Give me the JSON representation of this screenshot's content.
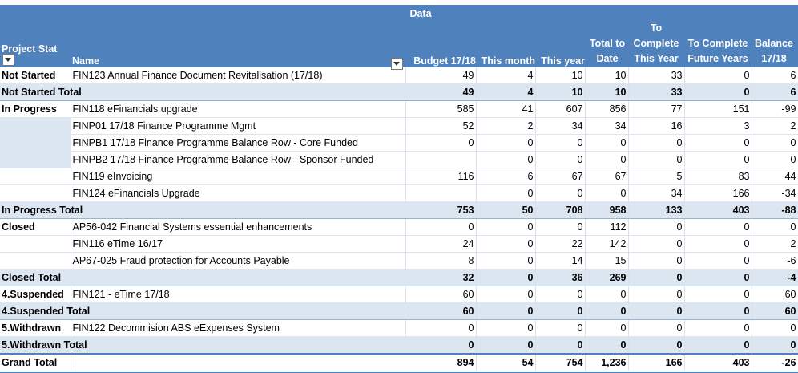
{
  "header": {
    "data_title": "Data",
    "project_status": "Project Stat",
    "name": "Name",
    "budget": "Budget 17/18",
    "this_month": "This month",
    "this_year": "This year",
    "total_to_date_1": "Total to",
    "total_to_date_2": "Date",
    "to_complete_1": "To",
    "to_complete_2": "Complete",
    "to_complete_3": "This Year",
    "future_1": "To Complete",
    "future_2": "Future Years",
    "balance_1": "Balance",
    "balance_2": "17/18"
  },
  "rows": [
    {
      "kind": "plain",
      "status": "Not Started",
      "name": "FIN123 Annual Finance Document Revitalisation (17/18)",
      "v": [
        "49",
        "4",
        "10",
        "10",
        "33",
        "0",
        "6"
      ]
    },
    {
      "kind": "total",
      "status": "Not Started Total",
      "name": "",
      "v": [
        "49",
        "4",
        "10",
        "10",
        "33",
        "0",
        "6"
      ]
    },
    {
      "kind": "plain",
      "status": "In Progress",
      "name": "FIN118 eFinancials upgrade",
      "v": [
        "585",
        "41",
        "607",
        "856",
        "77",
        "151",
        "-99"
      ]
    },
    {
      "kind": "plain",
      "status": "",
      "name": "FINP01 17/18 Finance Programme Mgmt",
      "v": [
        "52",
        "2",
        "34",
        "34",
        "16",
        "3",
        "2"
      ]
    },
    {
      "kind": "plain",
      "status": "",
      "name": "FINPB1 17/18 Finance Programme Balance Row - Core Funded",
      "v": [
        "0",
        "0",
        "0",
        "0",
        "0",
        "0",
        "0"
      ]
    },
    {
      "kind": "plain",
      "status": "",
      "name": "FINPB2 17/18 Finance Programme Balance Row - Sponsor Funded",
      "v": [
        "",
        "0",
        "0",
        "0",
        "0",
        "0",
        "0"
      ]
    },
    {
      "kind": "plain",
      "status": "",
      "name": "FIN119 eInvoicing",
      "v": [
        "116",
        "6",
        "67",
        "67",
        "5",
        "83",
        "44"
      ]
    },
    {
      "kind": "plain",
      "status": "",
      "name": "FIN124 eFinancials Upgrade",
      "v": [
        "",
        "0",
        "0",
        "0",
        "34",
        "166",
        "-34"
      ]
    },
    {
      "kind": "total",
      "status": "In Progress Total",
      "name": "",
      "v": [
        "753",
        "50",
        "708",
        "958",
        "133",
        "403",
        "-88"
      ]
    },
    {
      "kind": "plain",
      "status": "Closed",
      "name": "AP56-042 Financial Systems essential enhancements",
      "v": [
        "0",
        "0",
        "0",
        "112",
        "0",
        "0",
        "0"
      ]
    },
    {
      "kind": "plain",
      "status": "",
      "name": "FIN116 eTime 16/17",
      "v": [
        "24",
        "0",
        "22",
        "142",
        "0",
        "0",
        "2"
      ]
    },
    {
      "kind": "plain",
      "status": "",
      "name": "AP67-025 Fraud protection for Accounts Payable",
      "v": [
        "8",
        "0",
        "14",
        "15",
        "0",
        "0",
        "-6"
      ]
    },
    {
      "kind": "total",
      "status": "Closed Total",
      "name": "",
      "v": [
        "32",
        "0",
        "36",
        "269",
        "0",
        "0",
        "-4"
      ]
    },
    {
      "kind": "plain",
      "status": "4.Suspended",
      "name": "FIN121 - eTime 17/18",
      "v": [
        "60",
        "0",
        "0",
        "0",
        "0",
        "0",
        "60"
      ]
    },
    {
      "kind": "total",
      "status": "4.Suspended Total",
      "name": "",
      "v": [
        "60",
        "0",
        "0",
        "0",
        "0",
        "0",
        "60"
      ]
    },
    {
      "kind": "plain",
      "status": "5.Withdrawn",
      "name": "FIN122 Decommision ABS eExpenses System",
      "v": [
        "0",
        "0",
        "0",
        "0",
        "0",
        "0",
        "0"
      ]
    },
    {
      "kind": "total",
      "status": "5.Withdrawn Total",
      "name": "",
      "v": [
        "0",
        "0",
        "0",
        "0",
        "0",
        "0",
        "0"
      ]
    },
    {
      "kind": "grand",
      "status": "Grand Total",
      "name": "",
      "v": [
        "894",
        "54",
        "754",
        "1,236",
        "166",
        "403",
        "-26"
      ]
    }
  ]
}
